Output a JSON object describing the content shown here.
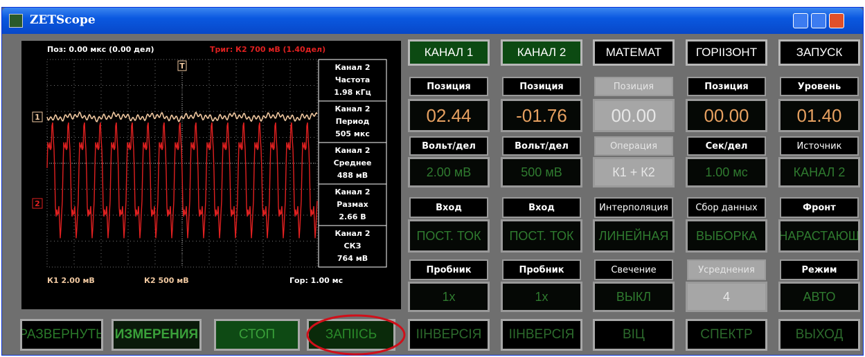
{
  "window": {
    "title": "ZETScope"
  },
  "scope": {
    "position": "Поз: 0.00 мкс (0.00 дел)",
    "trigger": "Триг: К2 700 мВ (1.40дел)",
    "trigger_marker": "T",
    "channel_markers": [
      "1",
      "2"
    ],
    "measurements": [
      {
        "channel": "Канал 2",
        "name": "Частота",
        "value": "1.98 кГц"
      },
      {
        "channel": "Канал 2",
        "name": "Период",
        "value": "505 мкс"
      },
      {
        "channel": "Канал 2",
        "name": "Среднее",
        "value": "488 мВ"
      },
      {
        "channel": "Канал 2",
        "name": "Размах",
        "value": "2.66 В"
      },
      {
        "channel": "Канал 2",
        "name": "СКЗ",
        "value": "764 мВ"
      }
    ],
    "footer": {
      "ch1": "К1  2.00 мВ",
      "ch2": "К2  500 мВ",
      "horizontal": "Гор: 1.00 мс"
    }
  },
  "menu_tabs": [
    "КАНАЛ 1",
    "КАНАЛ 2",
    "МАТЕМАТ",
    "ГОРІІЗОНТ",
    "ЗАПУСК"
  ],
  "columns": [
    [
      {
        "label": "Позиция",
        "value": "02.44"
      },
      {
        "label": "Вольт/дел",
        "value": "2.00 мВ"
      },
      {
        "label": "Вход",
        "value": "ПОСТ. ТОК"
      },
      {
        "label": "Пробник",
        "value": "1x"
      }
    ],
    [
      {
        "label": "Позиция",
        "value": "-01.76"
      },
      {
        "label": "Вольт/дел",
        "value": "500 мВ"
      },
      {
        "label": "Вход",
        "value": "ПОСТ. ТОК"
      },
      {
        "label": "Пробник",
        "value": "1x"
      }
    ],
    [
      {
        "label": "Позиция",
        "value": "00.00"
      },
      {
        "label": "Операция",
        "value": "К1 + К2"
      },
      {
        "label": "Интерполяция",
        "value": "ЛИНЕЙНАЯ"
      },
      {
        "label": "Свечение",
        "value": "ВЫКЛ"
      }
    ],
    [
      {
        "label": "Позиция",
        "value": "00.00"
      },
      {
        "label": "Сек/дел",
        "value": "1.00 мс"
      },
      {
        "label": "Сбор данных",
        "value": "ВЫБОРКА"
      },
      {
        "label": "Усреднения",
        "value": "4"
      }
    ],
    [
      {
        "label": "Уровень",
        "value": "01.40"
      },
      {
        "label": "Источник",
        "value": "КАНАЛ 2"
      },
      {
        "label": "Фронт",
        "value": "НАРАСТАЮЩ"
      },
      {
        "label": "Режим",
        "value": "АВТО"
      }
    ]
  ],
  "bottom_buttons": [
    "РАЗВЕРНУТЬ",
    "ИЗМЕРЕНИЯ",
    "СТОП",
    "ЗАПІІСЬ",
    "ІІНВЕРСІЯ",
    "ІІНВЕРСІЯ",
    "ВІЦ",
    "СПЕКТР",
    "ВЫХОД"
  ]
}
